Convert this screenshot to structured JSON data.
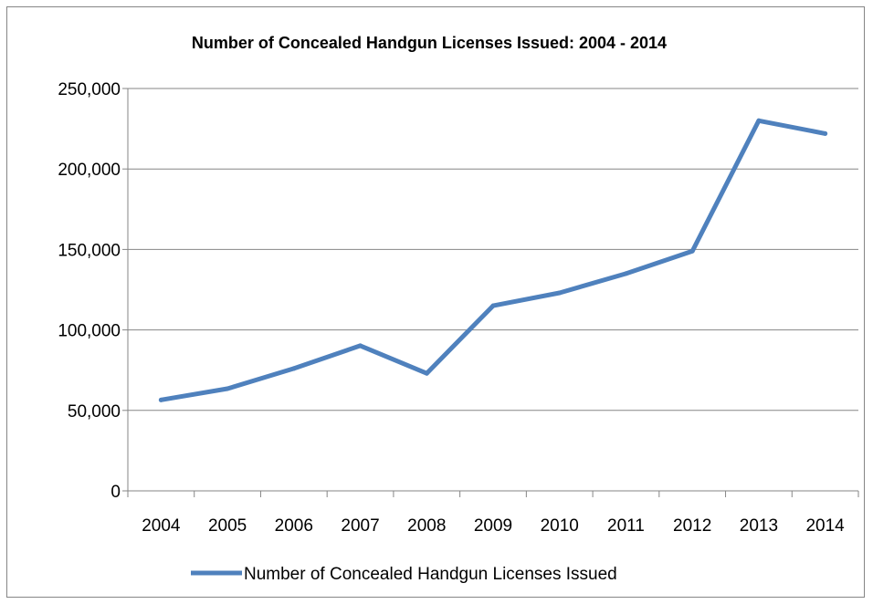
{
  "chart_data": {
    "type": "line",
    "title": "Number of Concealed Handgun Licenses Issued:  2004 - 2014",
    "xlabel": "",
    "ylabel": "",
    "categories": [
      "2004",
      "2005",
      "2006",
      "2007",
      "2008",
      "2009",
      "2010",
      "2011",
      "2012",
      "2013",
      "2014"
    ],
    "series": [
      {
        "name": "Number of Concealed Handgun Licenses Issued",
        "values": [
          56500,
          63500,
          76000,
          90200,
          73000,
          115000,
          123000,
          135000,
          149000,
          230000,
          222000
        ]
      }
    ],
    "ylim": [
      0,
      250000
    ],
    "yticks": [
      0,
      50000,
      100000,
      150000,
      200000,
      250000
    ],
    "ytick_labels": [
      "0",
      "50,000",
      "100,000",
      "150,000",
      "200,000",
      "250,000"
    ],
    "grid": "horizontal",
    "legend_position": "bottom"
  },
  "colors": {
    "series_line": "#4f81bd",
    "gridline": "#868686",
    "axis": "#868686",
    "frame": "#868686"
  }
}
